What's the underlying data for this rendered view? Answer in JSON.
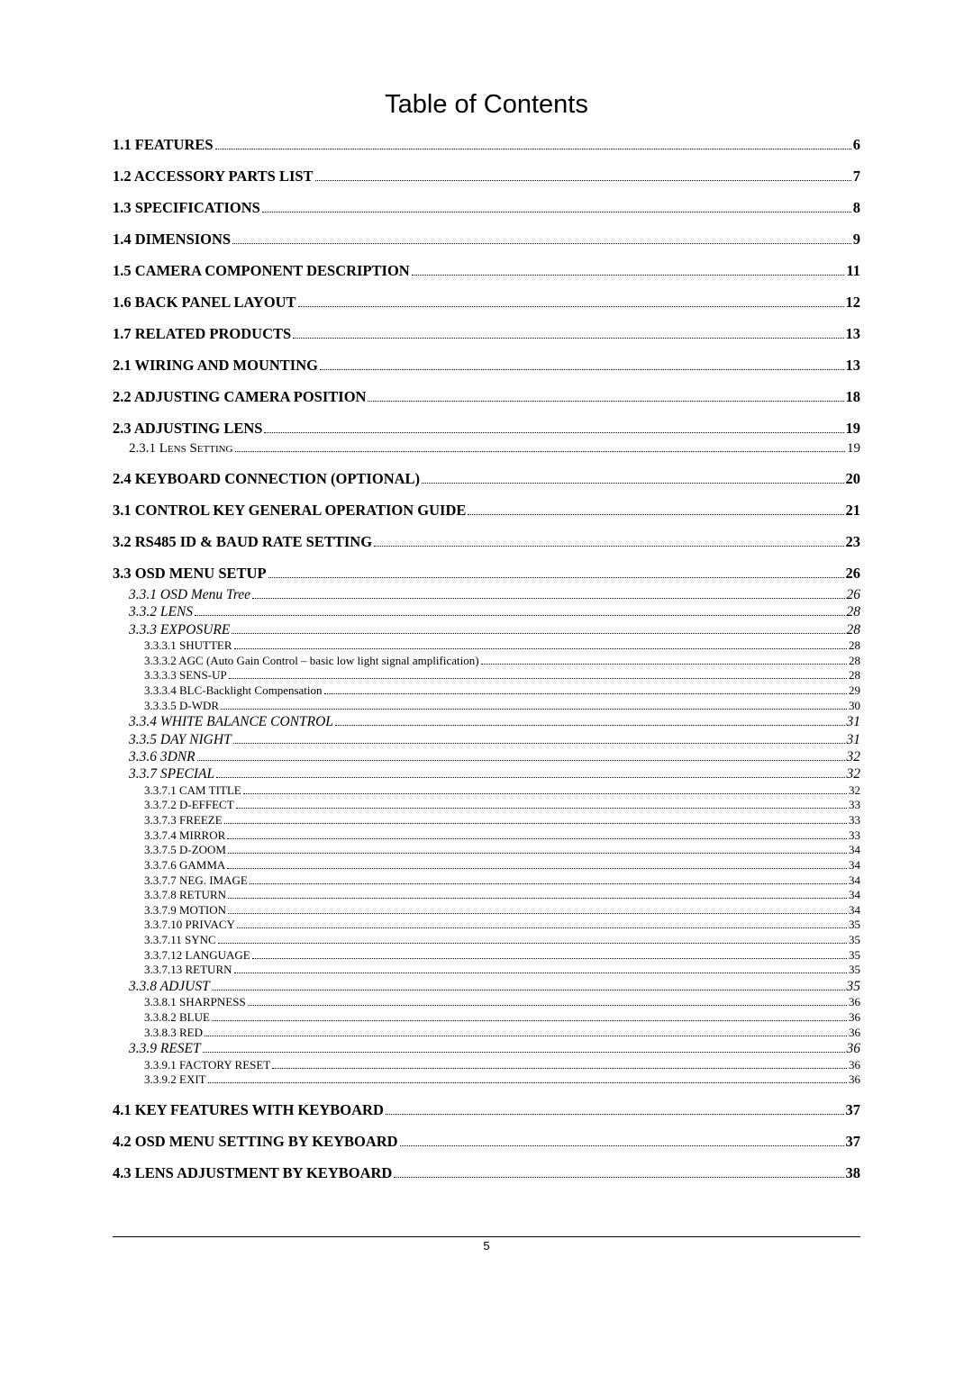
{
  "title": "Table of Contents",
  "page_number": "5",
  "toc": [
    {
      "level": 0,
      "label": "1.1 FEATURES",
      "page": "6"
    },
    {
      "level": 0,
      "label": "1.2 ACCESSORY PARTS LIST",
      "page": "7"
    },
    {
      "level": 0,
      "label": "1.3 SPECIFICATIONS",
      "page": "8"
    },
    {
      "level": 0,
      "label": "1.4 DIMENSIONS",
      "page": "9"
    },
    {
      "level": 0,
      "label": "1.5 CAMERA COMPONENT DESCRIPTION",
      "page": "11"
    },
    {
      "level": 0,
      "label": "1.6 BACK PANEL LAYOUT",
      "page": "12"
    },
    {
      "level": 0,
      "label": "1.7 RELATED PRODUCTS",
      "page": "13"
    },
    {
      "level": 0,
      "label": "2.1 WIRING AND MOUNTING",
      "page": "13"
    },
    {
      "level": 0,
      "label": "2.2 ADJUSTING CAMERA POSITION",
      "page": "18"
    },
    {
      "level": 0,
      "label": "2.3 ADJUSTING LENS",
      "page": "19"
    },
    {
      "level": 1,
      "label": "2.3.1 Lens Setting",
      "page": "19"
    },
    {
      "level": 0,
      "label": "2.4 KEYBOARD CONNECTION (OPTIONAL)",
      "page": "20"
    },
    {
      "level": 0,
      "label": "3.1 CONTROL KEY GENERAL OPERATION GUIDE",
      "page": "21"
    },
    {
      "level": 0,
      "label": "3.2 RS485 ID & BAUD RATE SETTING",
      "page": "23"
    },
    {
      "level": 0,
      "label": "3.3 OSD MENU SETUP",
      "page": "26"
    },
    {
      "level": 2,
      "label": "3.3.1 OSD Menu Tree",
      "page": "26"
    },
    {
      "level": 2,
      "label": "3.3.2 LENS",
      "page": "28"
    },
    {
      "level": 2,
      "label": "3.3.3 EXPOSURE",
      "page": "28"
    },
    {
      "level": 3,
      "label": "3.3.3.1 SHUTTER",
      "page": "28"
    },
    {
      "level": 3,
      "label": "3.3.3.2 AGC (Auto Gain Control – basic low light  signal amplification)",
      "page": "28"
    },
    {
      "level": 3,
      "label": "3.3.3.3 SENS-UP",
      "page": "28"
    },
    {
      "level": 3,
      "label": "3.3.3.4 BLC-Backlight Compensation",
      "page": "29"
    },
    {
      "level": 3,
      "label": "3.3.3.5 D-WDR",
      "page": "30"
    },
    {
      "level": 2,
      "label": "3.3.4 WHITE BALANCE CONTROL",
      "page": "31"
    },
    {
      "level": 2,
      "label": "3.3.5 DAY NIGHT",
      "page": "31"
    },
    {
      "level": 2,
      "label": "3.3.6  3DNR",
      "page": "32"
    },
    {
      "level": 2,
      "label": "3.3.7 SPECIAL",
      "page": "32"
    },
    {
      "level": 3,
      "label": "3.3.7.1 CAM TITLE",
      "page": "32"
    },
    {
      "level": 3,
      "label": "3.3.7.2 D-EFFECT",
      "page": "33"
    },
    {
      "level": 3,
      "label": "3.3.7.3 FREEZE",
      "page": "33"
    },
    {
      "level": 3,
      "label": "3.3.7.4 MIRROR",
      "page": "33"
    },
    {
      "level": 3,
      "label": "3.3.7.5 D-ZOOM",
      "page": "34"
    },
    {
      "level": 3,
      "label": "3.3.7.6 GAMMA",
      "page": "34"
    },
    {
      "level": 3,
      "label": "3.3.7.7 NEG. IMAGE",
      "page": "34"
    },
    {
      "level": 3,
      "label": "3.3.7.8 RETURN",
      "page": "34"
    },
    {
      "level": 3,
      "label": "3.3.7.9 MOTION",
      "page": "34"
    },
    {
      "level": 3,
      "label": "3.3.7.10 PRIVACY",
      "page": "35"
    },
    {
      "level": 3,
      "label": "3.3.7.11 SYNC",
      "page": "35"
    },
    {
      "level": 3,
      "label": "3.3.7.12 LANGUAGE",
      "page": "35"
    },
    {
      "level": 3,
      "label": "3.3.7.13 RETURN",
      "page": "35"
    },
    {
      "level": 2,
      "label": "3.3.8 ADJUST",
      "page": "35"
    },
    {
      "level": 3,
      "label": "3.3.8.1 SHARPNESS",
      "page": "36"
    },
    {
      "level": 3,
      "label": "3.3.8.2 BLUE",
      "page": "36"
    },
    {
      "level": 3,
      "label": "3.3.8.3 RED",
      "page": "36"
    },
    {
      "level": 2,
      "label": "3.3.9 RESET",
      "page": "36"
    },
    {
      "level": 3,
      "label": "3.3.9.1 FACTORY RESET",
      "page": "36"
    },
    {
      "level": 3,
      "label": "3.3.9.2 EXIT",
      "page": "36"
    },
    {
      "level": 0,
      "label": "4.1 KEY FEATURES WITH KEYBOARD",
      "page": "37"
    },
    {
      "level": 0,
      "label": "4.2 OSD MENU SETTING BY KEYBOARD",
      "page": "37"
    },
    {
      "level": 0,
      "label": "4.3 LENS ADJUSTMENT BY KEYBOARD",
      "page": "38"
    }
  ]
}
